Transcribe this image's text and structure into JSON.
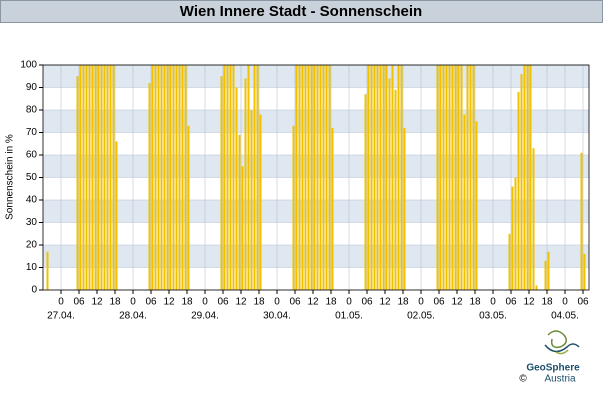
{
  "chart_data": {
    "type": "bar",
    "title": "Wien Innere Stadt - Sonnenschein",
    "y_label": "Sonnenschein in %",
    "series": [
      {
        "name": "Sonnenschein",
        "color": "#f2c200",
        "x": [
          -5,
          5,
          6,
          7,
          8,
          9,
          10,
          11,
          12,
          13,
          14,
          15,
          16,
          17,
          18,
          29,
          30,
          31,
          32,
          33,
          34,
          35,
          36,
          37,
          38,
          39,
          40,
          41,
          42,
          53,
          54,
          55,
          56,
          57,
          58,
          59,
          60,
          61,
          62,
          63,
          64,
          65,
          66,
          77,
          78,
          79,
          80,
          81,
          82,
          83,
          84,
          85,
          86,
          87,
          88,
          89,
          90,
          101,
          102,
          103,
          104,
          105,
          106,
          107,
          108,
          109,
          110,
          111,
          112,
          113,
          114,
          125,
          126,
          127,
          128,
          129,
          130,
          131,
          132,
          133,
          134,
          135,
          136,
          137,
          138,
          149,
          150,
          151,
          152,
          153,
          154,
          155,
          156,
          157,
          158,
          161,
          162,
          173,
          174
        ],
        "values": [
          17,
          95,
          100,
          100,
          100,
          100,
          100,
          100,
          100,
          100,
          100,
          100,
          100,
          100,
          66,
          92,
          100,
          100,
          100,
          100,
          100,
          100,
          100,
          100,
          100,
          100,
          100,
          100,
          73,
          95,
          100,
          100,
          100,
          100,
          90,
          69,
          55,
          94,
          100,
          80,
          100,
          100,
          78,
          73,
          100,
          100,
          100,
          100,
          100,
          100,
          100,
          100,
          100,
          100,
          100,
          100,
          72,
          87,
          100,
          100,
          100,
          100,
          100,
          100,
          100,
          94,
          100,
          89,
          100,
          100,
          72,
          100,
          100,
          100,
          100,
          100,
          100,
          100,
          100,
          100,
          78,
          100,
          100,
          100,
          75,
          25,
          46,
          50,
          88,
          96,
          100,
          100,
          100,
          63,
          2,
          13,
          17,
          61,
          16
        ]
      }
    ],
    "xlim": [
      -6,
      176
    ],
    "ylim": [
      0,
      100
    ],
    "yticks": [
      0,
      10,
      20,
      30,
      40,
      50,
      60,
      70,
      80,
      90,
      100
    ],
    "xticks": [
      0,
      {
        "value": 6,
        "label": "06"
      },
      {
        "value": 12,
        "label": "12"
      },
      {
        "value": 18,
        "label": "18"
      },
      {
        "value": 24,
        "label": "0"
      },
      {
        "value": 30,
        "label": "06"
      },
      {
        "value": 36,
        "label": "12"
      },
      {
        "value": 42,
        "label": "18"
      },
      {
        "value": 48,
        "label": "0"
      },
      {
        "value": 54,
        "label": "06"
      },
      {
        "value": 60,
        "label": "12"
      },
      {
        "value": 66,
        "label": "18"
      },
      {
        "value": 72,
        "label": "0"
      },
      {
        "value": 78,
        "label": "06"
      },
      {
        "value": 84,
        "label": "12"
      },
      {
        "value": 90,
        "label": "18"
      },
      {
        "value": 96,
        "label": "0"
      },
      {
        "value": 102,
        "label": "06"
      },
      {
        "value": 108,
        "label": "12"
      },
      {
        "value": 114,
        "label": "18"
      },
      {
        "value": 120,
        "label": "0"
      },
      {
        "value": 126,
        "label": "06"
      },
      {
        "value": 132,
        "label": "12"
      },
      {
        "value": 138,
        "label": "18"
      },
      {
        "value": 144,
        "label": "0"
      },
      {
        "value": 150,
        "label": "06"
      },
      {
        "value": 156,
        "label": "12"
      },
      {
        "value": 162,
        "label": "18"
      },
      {
        "value": 168,
        "label": "0"
      },
      {
        "value": 174,
        "label": "06"
      }
    ],
    "x_date_labels": [
      {
        "value": 0,
        "label": "27.04."
      },
      {
        "value": 24,
        "label": "28.04."
      },
      {
        "value": 48,
        "label": "29.04."
      },
      {
        "value": 72,
        "label": "30.04."
      },
      {
        "value": 96,
        "label": "01.05."
      },
      {
        "value": 120,
        "label": "02.05."
      },
      {
        "value": 144,
        "label": "03.05."
      },
      {
        "value": 168,
        "label": "04.05."
      }
    ],
    "grid": true,
    "logo": {
      "copyright": "©",
      "name": "GeoSphere",
      "country": "Austria"
    }
  }
}
